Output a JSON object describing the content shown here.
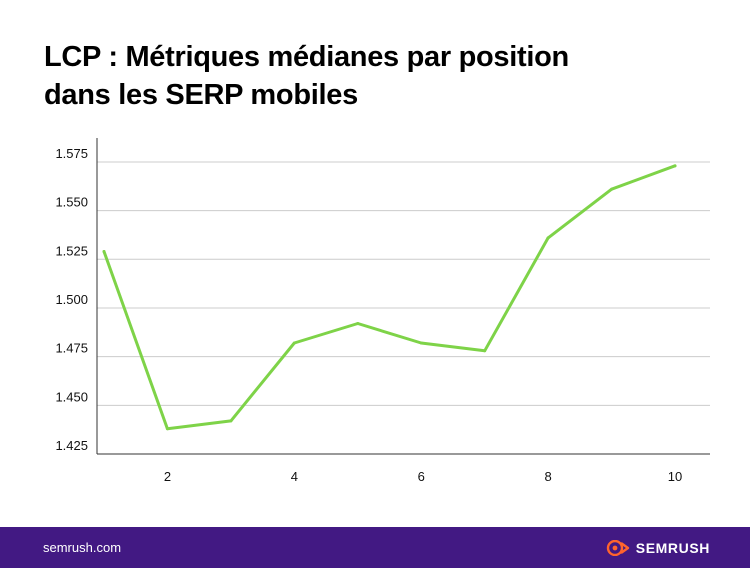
{
  "header": {
    "title_line1": "LCP : Métriques médianes par position",
    "title_line2": "dans les SERP mobiles"
  },
  "chart_data": {
    "type": "line",
    "title": "LCP : Métriques médianes par position dans les SERP mobiles",
    "xlabel": "",
    "ylabel": "",
    "x": [
      1,
      2,
      3,
      4,
      5,
      6,
      7,
      8,
      9,
      10
    ],
    "xticks": [
      "2",
      "4",
      "6",
      "8",
      "10"
    ],
    "yticks": [
      "1.425",
      "1.450",
      "1.475",
      "1.500",
      "1.525",
      "1.550",
      "1.575"
    ],
    "ylim": [
      1.425,
      1.576
    ],
    "xlim": [
      0.9,
      10.5
    ],
    "grid": true,
    "series": [
      {
        "values": [
          1.529,
          1.438,
          1.442,
          1.482,
          1.492,
          1.482,
          1.478,
          1.536,
          1.561,
          1.573
        ]
      }
    ],
    "colors": {
      "line": "#7ed348",
      "grid": "#cccccc",
      "axis": "#333333"
    }
  },
  "footer": {
    "url": "semrush.com",
    "brand": "SEMRUSH",
    "logo_icon": "semrush-flame-icon",
    "colors": {
      "background": "#421983",
      "logo_accent": "#ff642d"
    }
  }
}
